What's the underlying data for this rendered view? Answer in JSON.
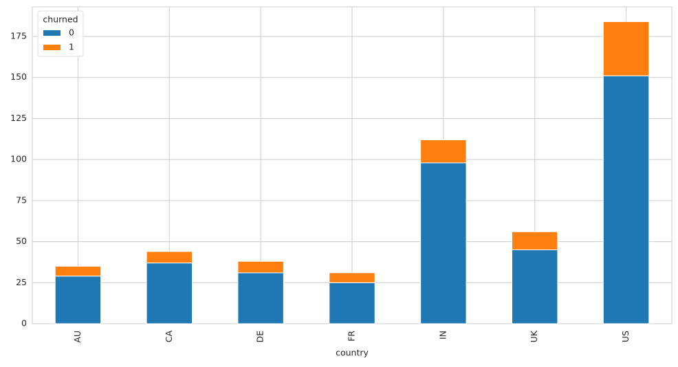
{
  "chart_data": {
    "type": "stacked-bar",
    "xlabel": "country",
    "categories": [
      "AU",
      "CA",
      "DE",
      "FR",
      "IN",
      "UK",
      "US"
    ],
    "legend_title": "churned",
    "legend": "upper left",
    "grid": true,
    "series": [
      {
        "name": "0",
        "color": "#1f77b4",
        "values": [
          29,
          37,
          31,
          25,
          98,
          45,
          151
        ]
      },
      {
        "name": "1",
        "color": "#ff7f0e",
        "values": [
          6,
          7,
          7,
          6,
          14,
          11,
          33
        ]
      }
    ],
    "ylim": [
      0,
      193
    ],
    "yticks": [
      0,
      25,
      50,
      75,
      100,
      125,
      150,
      175
    ]
  }
}
